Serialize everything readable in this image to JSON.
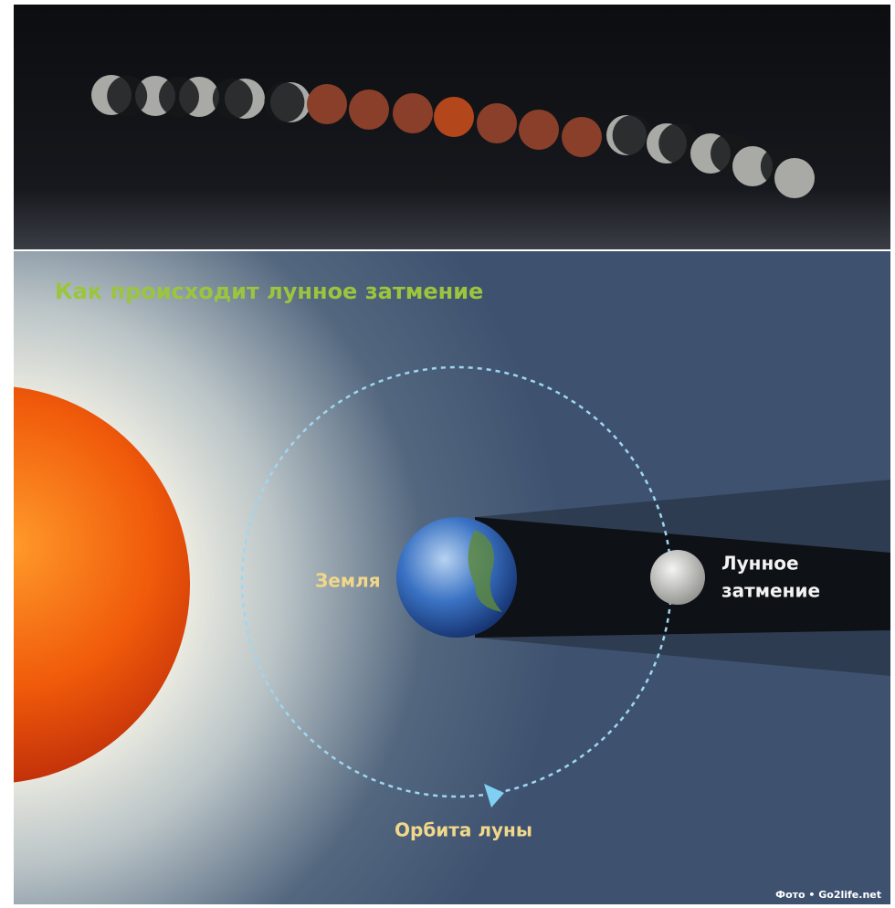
{
  "header": {
    "title": "Как происходит лунное затмение"
  },
  "labels": {
    "earth": "Земля",
    "moon": [
      "Лунное",
      "затмение"
    ],
    "orbit": "Орбита луны"
  },
  "credit": "Фото • Go2life.net"
}
